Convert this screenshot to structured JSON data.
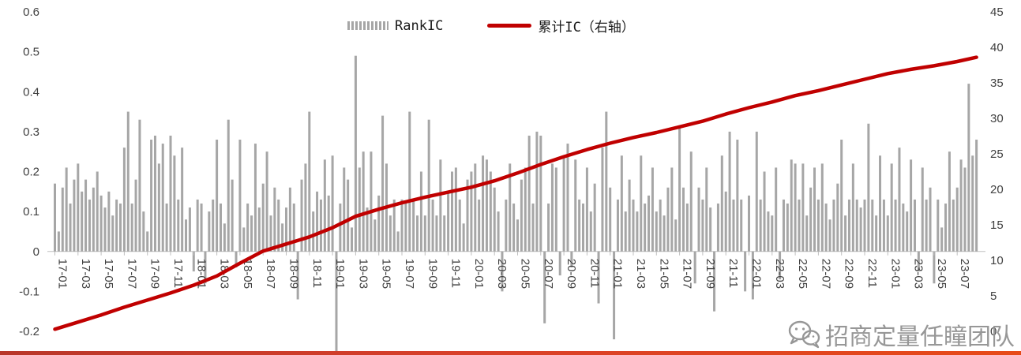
{
  "legend": {
    "rankic_label": "RankIC",
    "cum_label": "累计IC（右轴）"
  },
  "watermark": {
    "text": "招商定量任瞳团队"
  },
  "colors": {
    "bar": "#a6a6a6",
    "line": "#c00000",
    "axis": "#bfbfbf",
    "tick_text": "#404040"
  },
  "chart_data": {
    "type": "bar",
    "title": "",
    "xlabel": "",
    "ylabel": "",
    "left_axis": {
      "range": [
        -0.2,
        0.6
      ],
      "ticks": [
        "0.6",
        "0.5",
        "0.4",
        "0.3",
        "0.2",
        "0.1",
        "0",
        "-0.1",
        "-0.2"
      ],
      "tick_values": [
        0.6,
        0.5,
        0.4,
        0.3,
        0.2,
        0.1,
        0,
        -0.1,
        -0.2
      ]
    },
    "right_axis": {
      "range": [
        0,
        45
      ],
      "ticks": [
        "45",
        "40",
        "35",
        "30",
        "25",
        "20",
        "15",
        "10",
        "5",
        "0"
      ],
      "tick_values": [
        45,
        40,
        35,
        30,
        25,
        20,
        15,
        10,
        5,
        0
      ]
    },
    "x_labels": [
      "17-01",
      "17-03",
      "17-05",
      "17-07",
      "17-09",
      "17-11",
      "18-01",
      "18-03",
      "18-05",
      "18-07",
      "18-09",
      "18-11",
      "19-01",
      "19-03",
      "19-05",
      "19-07",
      "19-09",
      "19-11",
      "20-01",
      "20-03",
      "20-05",
      "20-07",
      "20-09",
      "20-11",
      "21-01",
      "21-03",
      "21-05",
      "21-07",
      "21-09",
      "21-11",
      "22-01",
      "22-03",
      "22-05",
      "22-07",
      "22-09",
      "22-11",
      "23-01",
      "23-03",
      "23-05",
      "23-07"
    ],
    "bars_per_label": 6,
    "series": [
      {
        "name": "RankIC",
        "axis": "left",
        "values": [
          0.17,
          0.05,
          0.16,
          0.21,
          0.12,
          0.18,
          0.22,
          0.15,
          0.18,
          0.13,
          0.16,
          0.2,
          0.14,
          0.11,
          0.15,
          0.09,
          0.13,
          0.12,
          0.26,
          0.35,
          0.12,
          0.18,
          0.33,
          0.1,
          0.05,
          0.28,
          0.29,
          0.22,
          0.27,
          0.12,
          0.29,
          0.24,
          0.13,
          0.26,
          0.08,
          0.11,
          -0.05,
          0.13,
          0.12,
          -0.08,
          0.1,
          0.13,
          0.28,
          0.12,
          0.07,
          0.33,
          0.18,
          -0.04,
          0.28,
          0.06,
          0.12,
          0.09,
          0.27,
          0.11,
          0.17,
          0.25,
          0.09,
          0.16,
          0.13,
          0.07,
          0.11,
          0.16,
          0.12,
          -0.12,
          0.18,
          0.22,
          0.35,
          0.1,
          0.15,
          0.13,
          0.23,
          0.14,
          0.24,
          -0.3,
          0.12,
          0.21,
          0.18,
          0.06,
          0.49,
          0.21,
          0.25,
          0.11,
          0.25,
          0.08,
          0.14,
          0.34,
          0.22,
          0.09,
          0.13,
          0.05,
          0.13,
          0.12,
          0.35,
          0.13,
          0.09,
          0.2,
          0.09,
          0.33,
          0.13,
          0.09,
          0.23,
          0.09,
          0.15,
          0.2,
          0.21,
          0.13,
          0.07,
          0.18,
          0.2,
          0.22,
          0.13,
          0.24,
          0.23,
          0.2,
          0.16,
          0.1,
          -0.1,
          0.13,
          0.22,
          0.12,
          0.08,
          0.18,
          0.21,
          0.29,
          0.12,
          0.3,
          0.29,
          -0.18,
          0.12,
          0.22,
          0.21,
          -0.06,
          0.24,
          0.27,
          -0.04,
          0.23,
          0.13,
          0.12,
          0.21,
          0.1,
          0.17,
          -0.13,
          0.26,
          0.35,
          0.16,
          -0.22,
          0.13,
          0.24,
          0.1,
          0.18,
          0.13,
          0.1,
          0.24,
          0.12,
          0.14,
          0.21,
          0.1,
          0.13,
          0.09,
          0.16,
          0.21,
          0.08,
          0.31,
          0.16,
          0.12,
          0.25,
          -0.08,
          0.16,
          0.13,
          0.21,
          0.11,
          -0.15,
          0.12,
          0.24,
          0.15,
          0.3,
          0.13,
          0.28,
          0.13,
          -0.1,
          0.14,
          -0.12,
          0.3,
          0.13,
          0.2,
          0.1,
          0.09,
          0.21,
          -0.07,
          0.13,
          0.12,
          0.23,
          0.22,
          0.13,
          0.22,
          0.09,
          0.16,
          0.21,
          0.13,
          0.22,
          0.12,
          0.08,
          0.13,
          0.17,
          0.28,
          0.09,
          0.13,
          0.22,
          0.13,
          0.11,
          0.13,
          0.32,
          0.13,
          0.09,
          0.24,
          0.13,
          0.09,
          0.22,
          0.13,
          0.26,
          0.12,
          0.1,
          0.23,
          0.13,
          -0.05,
          0.21,
          0.13,
          0.16,
          -0.08,
          0.13,
          0.06,
          0.12,
          0.25,
          0.13,
          0.16,
          0.23,
          0.21,
          0.42,
          0.24,
          0.28
        ]
      },
      {
        "name": "累计IC（右轴）",
        "axis": "right",
        "note": "values sampled at each x_label position plus final point",
        "values": [
          0.3,
          1.3,
          2.3,
          3.4,
          4.4,
          5.4,
          6.5,
          7.8,
          9.6,
          11.3,
          12.3,
          13.3,
          14.6,
          16.2,
          17.2,
          18.1,
          18.9,
          19.6,
          20.3,
          21.2,
          22.3,
          23.5,
          24.6,
          25.6,
          26.5,
          27.3,
          28.0,
          28.8,
          29.6,
          30.6,
          31.5,
          32.3,
          33.2,
          33.9,
          34.7,
          35.5,
          36.3,
          36.9,
          37.4,
          38.0,
          38.6
        ]
      }
    ]
  }
}
